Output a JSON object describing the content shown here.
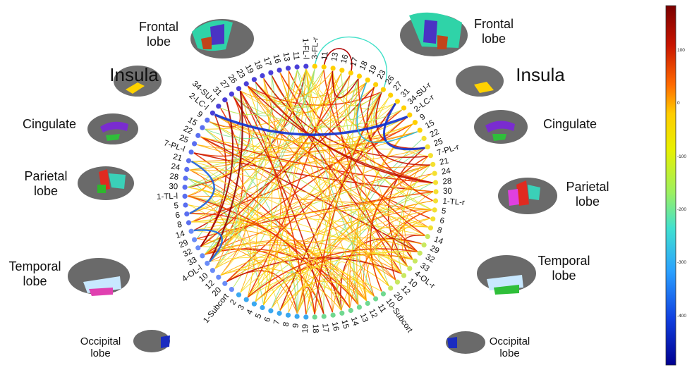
{
  "lobes": {
    "frontal_left": "Frontal\nlobe",
    "frontal_right": "Frontal\nlobe",
    "insula_left": "Insula",
    "insula_right": "Insula",
    "cingulate_left": "Cingulate",
    "cingulate_right": "Cingulate",
    "parietal_left": "Parietal\nlobe",
    "parietal_right": "Parietal\nlobe",
    "temporal_left": "Temporal\nlobe",
    "temporal_right": "Temporal\nlobe",
    "occipital_left": "Occipital\nlobe",
    "occipital_right": "Occipital\nlobe"
  },
  "nodes_left": [
    "1-FL-l",
    "11",
    "13",
    "16",
    "17",
    "18",
    "19",
    "23",
    "26",
    "27",
    "31",
    "34-SU-l",
    "2-LC-l",
    "9",
    "15",
    "22",
    "25",
    "7-PL-l",
    "21",
    "24",
    "28",
    "30",
    "1-TL-l",
    "5",
    "6",
    "8",
    "14",
    "29",
    "32",
    "33",
    "4-OL-l",
    "10",
    "12",
    "20",
    "1-Subcort",
    "2",
    "3",
    "4",
    "5",
    "6",
    "7",
    "8",
    "9",
    "19"
  ],
  "nodes_right": [
    "3-FL-r",
    "11",
    "13",
    "16",
    "17",
    "18",
    "19",
    "23",
    "26",
    "27",
    "31",
    "34-SU-r",
    "2-LC-r",
    "9",
    "15",
    "22",
    "25",
    "7-PL-r",
    "21",
    "24",
    "28",
    "30",
    "1-TL-r",
    "5",
    "6",
    "8",
    "14",
    "29",
    "32",
    "33",
    "4-OL-r",
    "10",
    "12",
    "20",
    "10-Subcort",
    "11",
    "12",
    "13",
    "14",
    "15",
    "16",
    "17",
    "18"
  ],
  "colorbar": {
    "ticks": [
      "100",
      "0",
      "-100",
      "-200",
      "-300",
      "-400"
    ],
    "colors": [
      "#7a0000",
      "#c81400",
      "#ff6a00",
      "#ffcc00",
      "#e8f000",
      "#9cf060",
      "#40e0d0",
      "#2aa0ff",
      "#1040e0",
      "#000090"
    ]
  }
}
